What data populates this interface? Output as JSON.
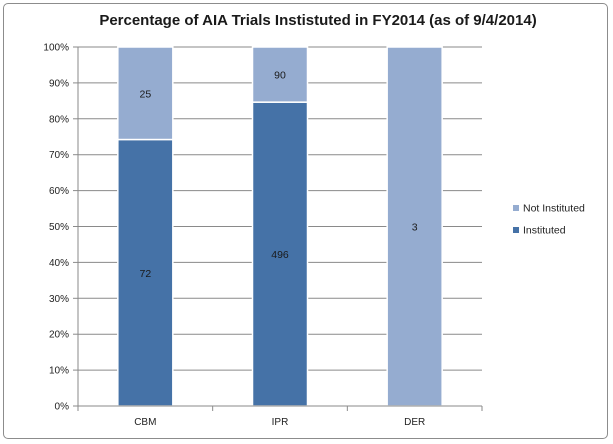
{
  "chart_data": {
    "type": "bar",
    "stacked": "percent",
    "title": "Percentage of AIA Trials Instistuted in FY2014 (as of 9/4/2014)",
    "categories": [
      "CBM",
      "IPR",
      "DER"
    ],
    "series": [
      {
        "name": "Instituted",
        "values": [
          72,
          496,
          0
        ],
        "color": "#4572a7"
      },
      {
        "name": "Not Instituted",
        "values": [
          25,
          90,
          3
        ],
        "color": "#95acd0"
      }
    ],
    "y_ticks": [
      "0%",
      "10%",
      "20%",
      "30%",
      "40%",
      "50%",
      "60%",
      "70%",
      "80%",
      "90%",
      "100%"
    ],
    "ylim": [
      0,
      100
    ],
    "grid": true,
    "legend_position": "right"
  }
}
